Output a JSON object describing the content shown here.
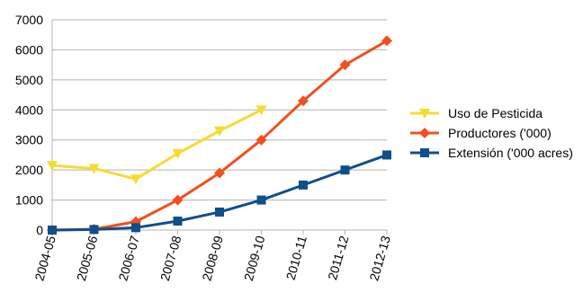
{
  "chart_data": {
    "type": "line",
    "title": "",
    "xlabel": "",
    "ylabel": "",
    "categories": [
      "2004-05",
      "2005-06",
      "2006-07",
      "2007-08",
      "2008-09",
      "2009-10",
      "2010-11",
      "2011-12",
      "2012-13"
    ],
    "ylim": [
      0,
      7000
    ],
    "yticks": [
      0,
      1000,
      2000,
      3000,
      4000,
      5000,
      6000,
      7000
    ],
    "grid": "horizontal",
    "legend_position": "right",
    "series": [
      {
        "name": "Uso de Pesticida",
        "color": "#f5dc32",
        "marker": "triangle-down",
        "values": [
          2150,
          2050,
          1700,
          2550,
          3300,
          4000,
          null,
          null,
          null
        ]
      },
      {
        "name": "Productores ('000)",
        "color": "#f0501e",
        "marker": "diamond",
        "values": [
          0,
          30,
          280,
          1000,
          1900,
          3000,
          4300,
          5500,
          6300
        ]
      },
      {
        "name": "Extensión ('000 acres)",
        "color": "#0f4f8a",
        "marker": "square",
        "values": [
          0,
          20,
          80,
          300,
          600,
          1000,
          1500,
          2000,
          2500
        ]
      }
    ]
  }
}
